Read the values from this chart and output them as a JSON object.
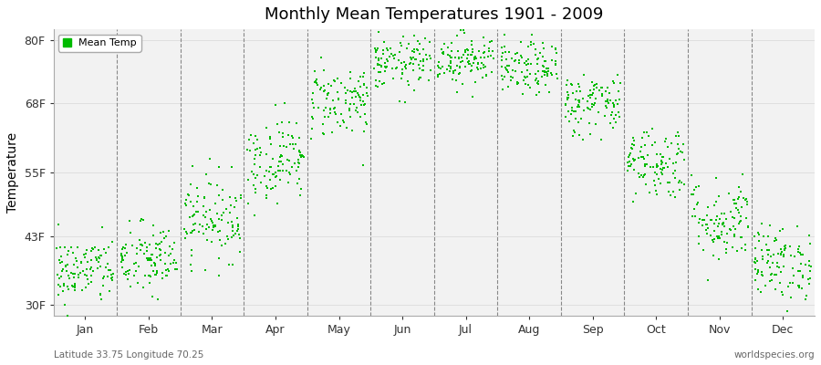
{
  "title": "Monthly Mean Temperatures 1901 - 2009",
  "ylabel": "Temperature",
  "yticks": [
    30,
    43,
    55,
    68,
    80
  ],
  "ytick_labels": [
    "30F",
    "43F",
    "55F",
    "68F",
    "80F"
  ],
  "ylim": [
    28,
    82
  ],
  "months": [
    "Jan",
    "Feb",
    "Mar",
    "Apr",
    "May",
    "Jun",
    "Jul",
    "Aug",
    "Sep",
    "Oct",
    "Nov",
    "Dec"
  ],
  "dot_color": "#00bb00",
  "dot_size": 3,
  "bg_color": "#ffffff",
  "plot_bg_color": "#f2f2f2",
  "legend_label": "Mean Temp",
  "subtitle_left": "Latitude 33.75 Longitude 70.25",
  "subtitle_right": "worldspecies.org",
  "n_years": 109,
  "monthly_means_F": [
    36.5,
    38.5,
    46.5,
    57.5,
    68.5,
    75.5,
    76.5,
    74.5,
    68.0,
    57.0,
    46.0,
    38.0
  ],
  "monthly_stds_F": [
    3.2,
    3.5,
    4.0,
    4.0,
    3.5,
    2.5,
    2.5,
    2.5,
    3.0,
    3.5,
    4.0,
    3.5
  ]
}
